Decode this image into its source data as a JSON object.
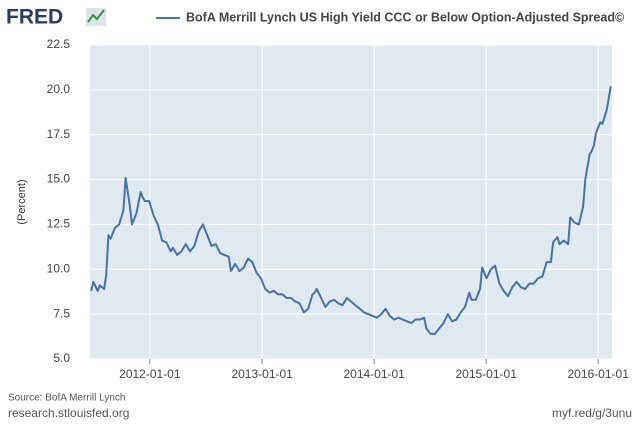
{
  "brand": {
    "logo": "FRED"
  },
  "chart_data": {
    "type": "line",
    "y_label": "(Percent)",
    "x": [
      "2011-06-24",
      "2011-07-01",
      "2011-07-15",
      "2011-07-22",
      "2011-08-05",
      "2011-08-12",
      "2011-08-19",
      "2011-08-26",
      "2011-09-09",
      "2011-09-23",
      "2011-10-07",
      "2011-10-14",
      "2011-10-28",
      "2011-11-04",
      "2011-11-18",
      "2011-12-02",
      "2011-12-09",
      "2011-12-16",
      "2011-12-30",
      "2012-01-13",
      "2012-01-27",
      "2012-02-10",
      "2012-02-24",
      "2012-03-09",
      "2012-03-16",
      "2012-03-30",
      "2012-04-13",
      "2012-04-27",
      "2012-05-11",
      "2012-05-25",
      "2012-06-08",
      "2012-06-22",
      "2012-07-06",
      "2012-07-20",
      "2012-08-03",
      "2012-08-17",
      "2012-08-31",
      "2012-09-14",
      "2012-09-21",
      "2012-10-05",
      "2012-10-19",
      "2012-11-02",
      "2012-11-16",
      "2012-11-30",
      "2012-12-14",
      "2012-12-28",
      "2013-01-11",
      "2013-01-25",
      "2013-02-08",
      "2013-02-22",
      "2013-03-08",
      "2013-03-22",
      "2013-04-05",
      "2013-04-19",
      "2013-05-03",
      "2013-05-17",
      "2013-05-31",
      "2013-06-14",
      "2013-06-21",
      "2013-06-28",
      "2013-07-12",
      "2013-07-26",
      "2013-08-09",
      "2013-08-23",
      "2013-09-06",
      "2013-09-20",
      "2013-10-04",
      "2013-10-18",
      "2013-11-01",
      "2013-11-15",
      "2013-11-29",
      "2013-12-13",
      "2013-12-27",
      "2014-01-10",
      "2014-01-24",
      "2014-02-07",
      "2014-02-21",
      "2014-03-07",
      "2014-03-21",
      "2014-04-04",
      "2014-04-18",
      "2014-05-02",
      "2014-05-16",
      "2014-05-30",
      "2014-06-13",
      "2014-06-20",
      "2014-07-04",
      "2014-07-18",
      "2014-08-01",
      "2014-08-15",
      "2014-08-29",
      "2014-09-12",
      "2014-09-26",
      "2014-10-10",
      "2014-10-24",
      "2014-11-07",
      "2014-11-14",
      "2014-11-28",
      "2014-12-12",
      "2014-12-19",
      "2015-01-02",
      "2015-01-16",
      "2015-01-30",
      "2015-02-13",
      "2015-02-27",
      "2015-03-13",
      "2015-03-27",
      "2015-04-10",
      "2015-04-24",
      "2015-05-08",
      "2015-05-22",
      "2015-06-05",
      "2015-06-19",
      "2015-07-03",
      "2015-07-17",
      "2015-07-31",
      "2015-08-07",
      "2015-08-21",
      "2015-08-28",
      "2015-09-11",
      "2015-09-25",
      "2015-10-02",
      "2015-10-16",
      "2015-10-30",
      "2015-11-13",
      "2015-11-20",
      "2015-12-04",
      "2015-12-11",
      "2015-12-18",
      "2015-12-25",
      "2016-01-08",
      "2016-01-15",
      "2016-01-29",
      "2016-02-11"
    ],
    "series": [
      {
        "name": "BofA Merrill Lynch US High Yield CCC or Below Option-Adjusted Spread©",
        "color": "#4572a7",
        "values": [
          8.8,
          9.3,
          8.8,
          9.1,
          8.9,
          9.7,
          11.9,
          11.7,
          12.3,
          12.5,
          13.3,
          15.1,
          13.5,
          12.5,
          13.1,
          14.3,
          14.0,
          13.8,
          13.8,
          13.0,
          12.5,
          11.6,
          11.5,
          11.0,
          11.2,
          10.8,
          11.0,
          11.4,
          11.0,
          11.3,
          12.1,
          12.5,
          11.9,
          11.3,
          11.4,
          10.9,
          10.8,
          10.7,
          9.9,
          10.3,
          9.9,
          10.1,
          10.6,
          10.4,
          9.8,
          9.5,
          8.9,
          8.7,
          8.8,
          8.6,
          8.6,
          8.4,
          8.4,
          8.2,
          8.1,
          7.6,
          7.8,
          8.6,
          8.7,
          8.9,
          8.4,
          7.9,
          8.2,
          8.3,
          8.1,
          8.0,
          8.4,
          8.2,
          8.0,
          7.8,
          7.6,
          7.5,
          7.4,
          7.3,
          7.5,
          7.8,
          7.4,
          7.2,
          7.3,
          7.2,
          7.1,
          7.0,
          7.2,
          7.2,
          7.3,
          6.7,
          6.4,
          6.4,
          6.7,
          7.0,
          7.5,
          7.1,
          7.2,
          7.6,
          7.9,
          8.7,
          8.3,
          8.3,
          8.9,
          10.1,
          9.5,
          10.0,
          10.2,
          9.2,
          8.8,
          8.5,
          9.0,
          9.3,
          9.0,
          8.9,
          9.2,
          9.2,
          9.5,
          9.6,
          10.4,
          10.4,
          11.5,
          11.8,
          11.4,
          11.6,
          11.4,
          12.9,
          12.6,
          12.5,
          13.5,
          15.0,
          16.4,
          16.6,
          16.9,
          17.6,
          18.2,
          18.1,
          18.9,
          20.2
        ]
      }
    ],
    "xlim": [
      "2011-06-20",
      "2016-02-15"
    ],
    "xticks": [
      "2012-01-01",
      "2013-01-01",
      "2014-01-01",
      "2015-01-01",
      "2016-01-01"
    ],
    "ylim": [
      5,
      22.5
    ],
    "yticks": [
      {
        "value": 5,
        "label": "5.0"
      },
      7.5,
      {
        "value": 10,
        "label": "10.0"
      },
      12.5,
      {
        "value": 15,
        "label": "15.0"
      },
      17.5,
      {
        "value": 20,
        "label": "20.0"
      },
      22.5
    ],
    "grid": true,
    "source": "Source: BofA Merrill Lynch"
  },
  "footer": {
    "left": "research.stlouisfed.org",
    "right": "myf.red/g/3unu"
  }
}
